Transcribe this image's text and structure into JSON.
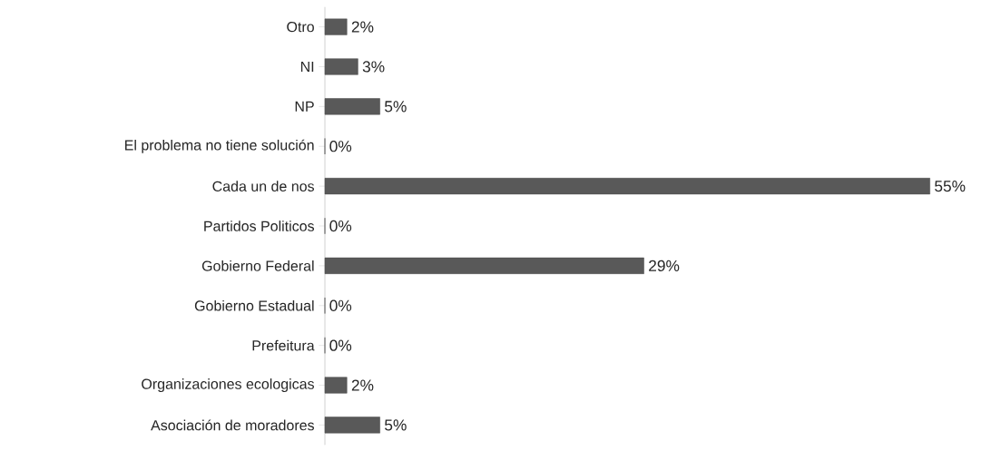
{
  "chart_data": {
    "type": "bar",
    "orientation": "horizontal",
    "categories": [
      "Otro",
      "NI",
      "NP",
      "El problema no tiene solución",
      "Cada un de nos",
      "Partidos Politicos",
      "Gobierno Federal",
      "Gobierno Estadual",
      "Prefeitura",
      "Organizaciones ecologicas",
      "Asociación de moradores"
    ],
    "values": [
      2,
      3,
      5,
      0,
      55,
      0,
      29,
      0,
      0,
      2,
      5
    ],
    "value_labels": [
      "2%",
      "3%",
      "5%",
      "0%",
      "55%",
      "0%",
      "29%",
      "0%",
      "0%",
      "2%",
      "5%"
    ],
    "color": "#595959",
    "xlim": [
      0,
      55
    ],
    "tick_labels": "y"
  }
}
